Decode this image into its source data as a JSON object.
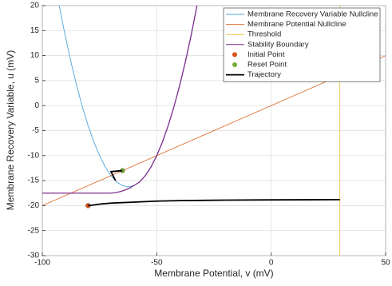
{
  "chart_data": {
    "type": "line",
    "xlabel": "Membrane Potential, v (mV)",
    "ylabel": "Membrane Recovery Variable, u (mV)",
    "xlim": [
      -100,
      50
    ],
    "xticks": [
      -100,
      -50,
      0,
      50
    ],
    "ylim": [
      -30,
      20
    ],
    "yticks": [
      -30,
      -25,
      -20,
      -15,
      -10,
      -5,
      0,
      5,
      10,
      15,
      20
    ],
    "grid": true,
    "legend": "northeast",
    "series": [
      {
        "name": "Membrane Recovery Variable Nullcline",
        "color": "#4da3d9",
        "style": "line",
        "x": [
          -93,
          -92,
          -90,
          -87.5,
          -85,
          -82.5,
          -80,
          -77.5,
          -75,
          -72.5,
          -70,
          -67.5,
          -65,
          -62.5,
          -60,
          -57.5,
          -55,
          -52.5,
          -50,
          -47.5,
          -45,
          -42.5,
          -40,
          -37.5,
          -35,
          -32
        ],
        "values": [
          20.96,
          18.56,
          14,
          8.75,
          4,
          -0.25,
          -4,
          -7.25,
          -10,
          -12.25,
          -14,
          -15.25,
          -16,
          -16.25,
          -16,
          -15.25,
          -14,
          -12.25,
          -10,
          -7.25,
          -4,
          -0.25,
          4,
          8.75,
          14,
          20.96
        ]
      },
      {
        "name": "Membrane Potential Nullcline",
        "color": "#e0733a",
        "style": "line",
        "x": [
          -100,
          50
        ],
        "values": [
          -20,
          10
        ]
      },
      {
        "name": "Threshold",
        "color": "#edc44a",
        "style": "line",
        "x": [
          30,
          30
        ],
        "values": [
          -30,
          20
        ]
      },
      {
        "name": "Stability Boundary",
        "color": "#7e2f8e",
        "style": "line",
        "x": [
          -100,
          -70,
          -68,
          -66,
          -64,
          -62,
          -60,
          -57.5,
          -55,
          -52.5,
          -50,
          -47.5,
          -45,
          -42.5,
          -40,
          -37.5,
          -35,
          -32
        ],
        "values": [
          -17.5,
          -17.5,
          -17.4,
          -17.2,
          -16.9,
          -16.5,
          -16,
          -15.25,
          -14,
          -12.25,
          -10,
          -7.25,
          -4,
          -0.25,
          4,
          8.75,
          14,
          20.96
        ]
      },
      {
        "name": "Initial Point",
        "color": "#d95319",
        "style": "marker",
        "x": [
          -80
        ],
        "values": [
          -20
        ]
      },
      {
        "name": "Reset Point",
        "color": "#77ac30",
        "style": "marker",
        "x": [
          -65
        ],
        "values": [
          -13
        ]
      },
      {
        "name": "Trajectory",
        "color": "#000000",
        "style": "line",
        "x": [
          -80,
          -78,
          -75,
          -70,
          -60,
          -50,
          -40,
          -20,
          0,
          30,
          null,
          -65,
          -70,
          -68
        ],
        "values": [
          -20,
          -19.9,
          -19.7,
          -19.5,
          -19.3,
          -19.1,
          -19,
          -18.9,
          -18.85,
          -18.8,
          null,
          -13,
          -13.2,
          -15
        ]
      }
    ]
  }
}
